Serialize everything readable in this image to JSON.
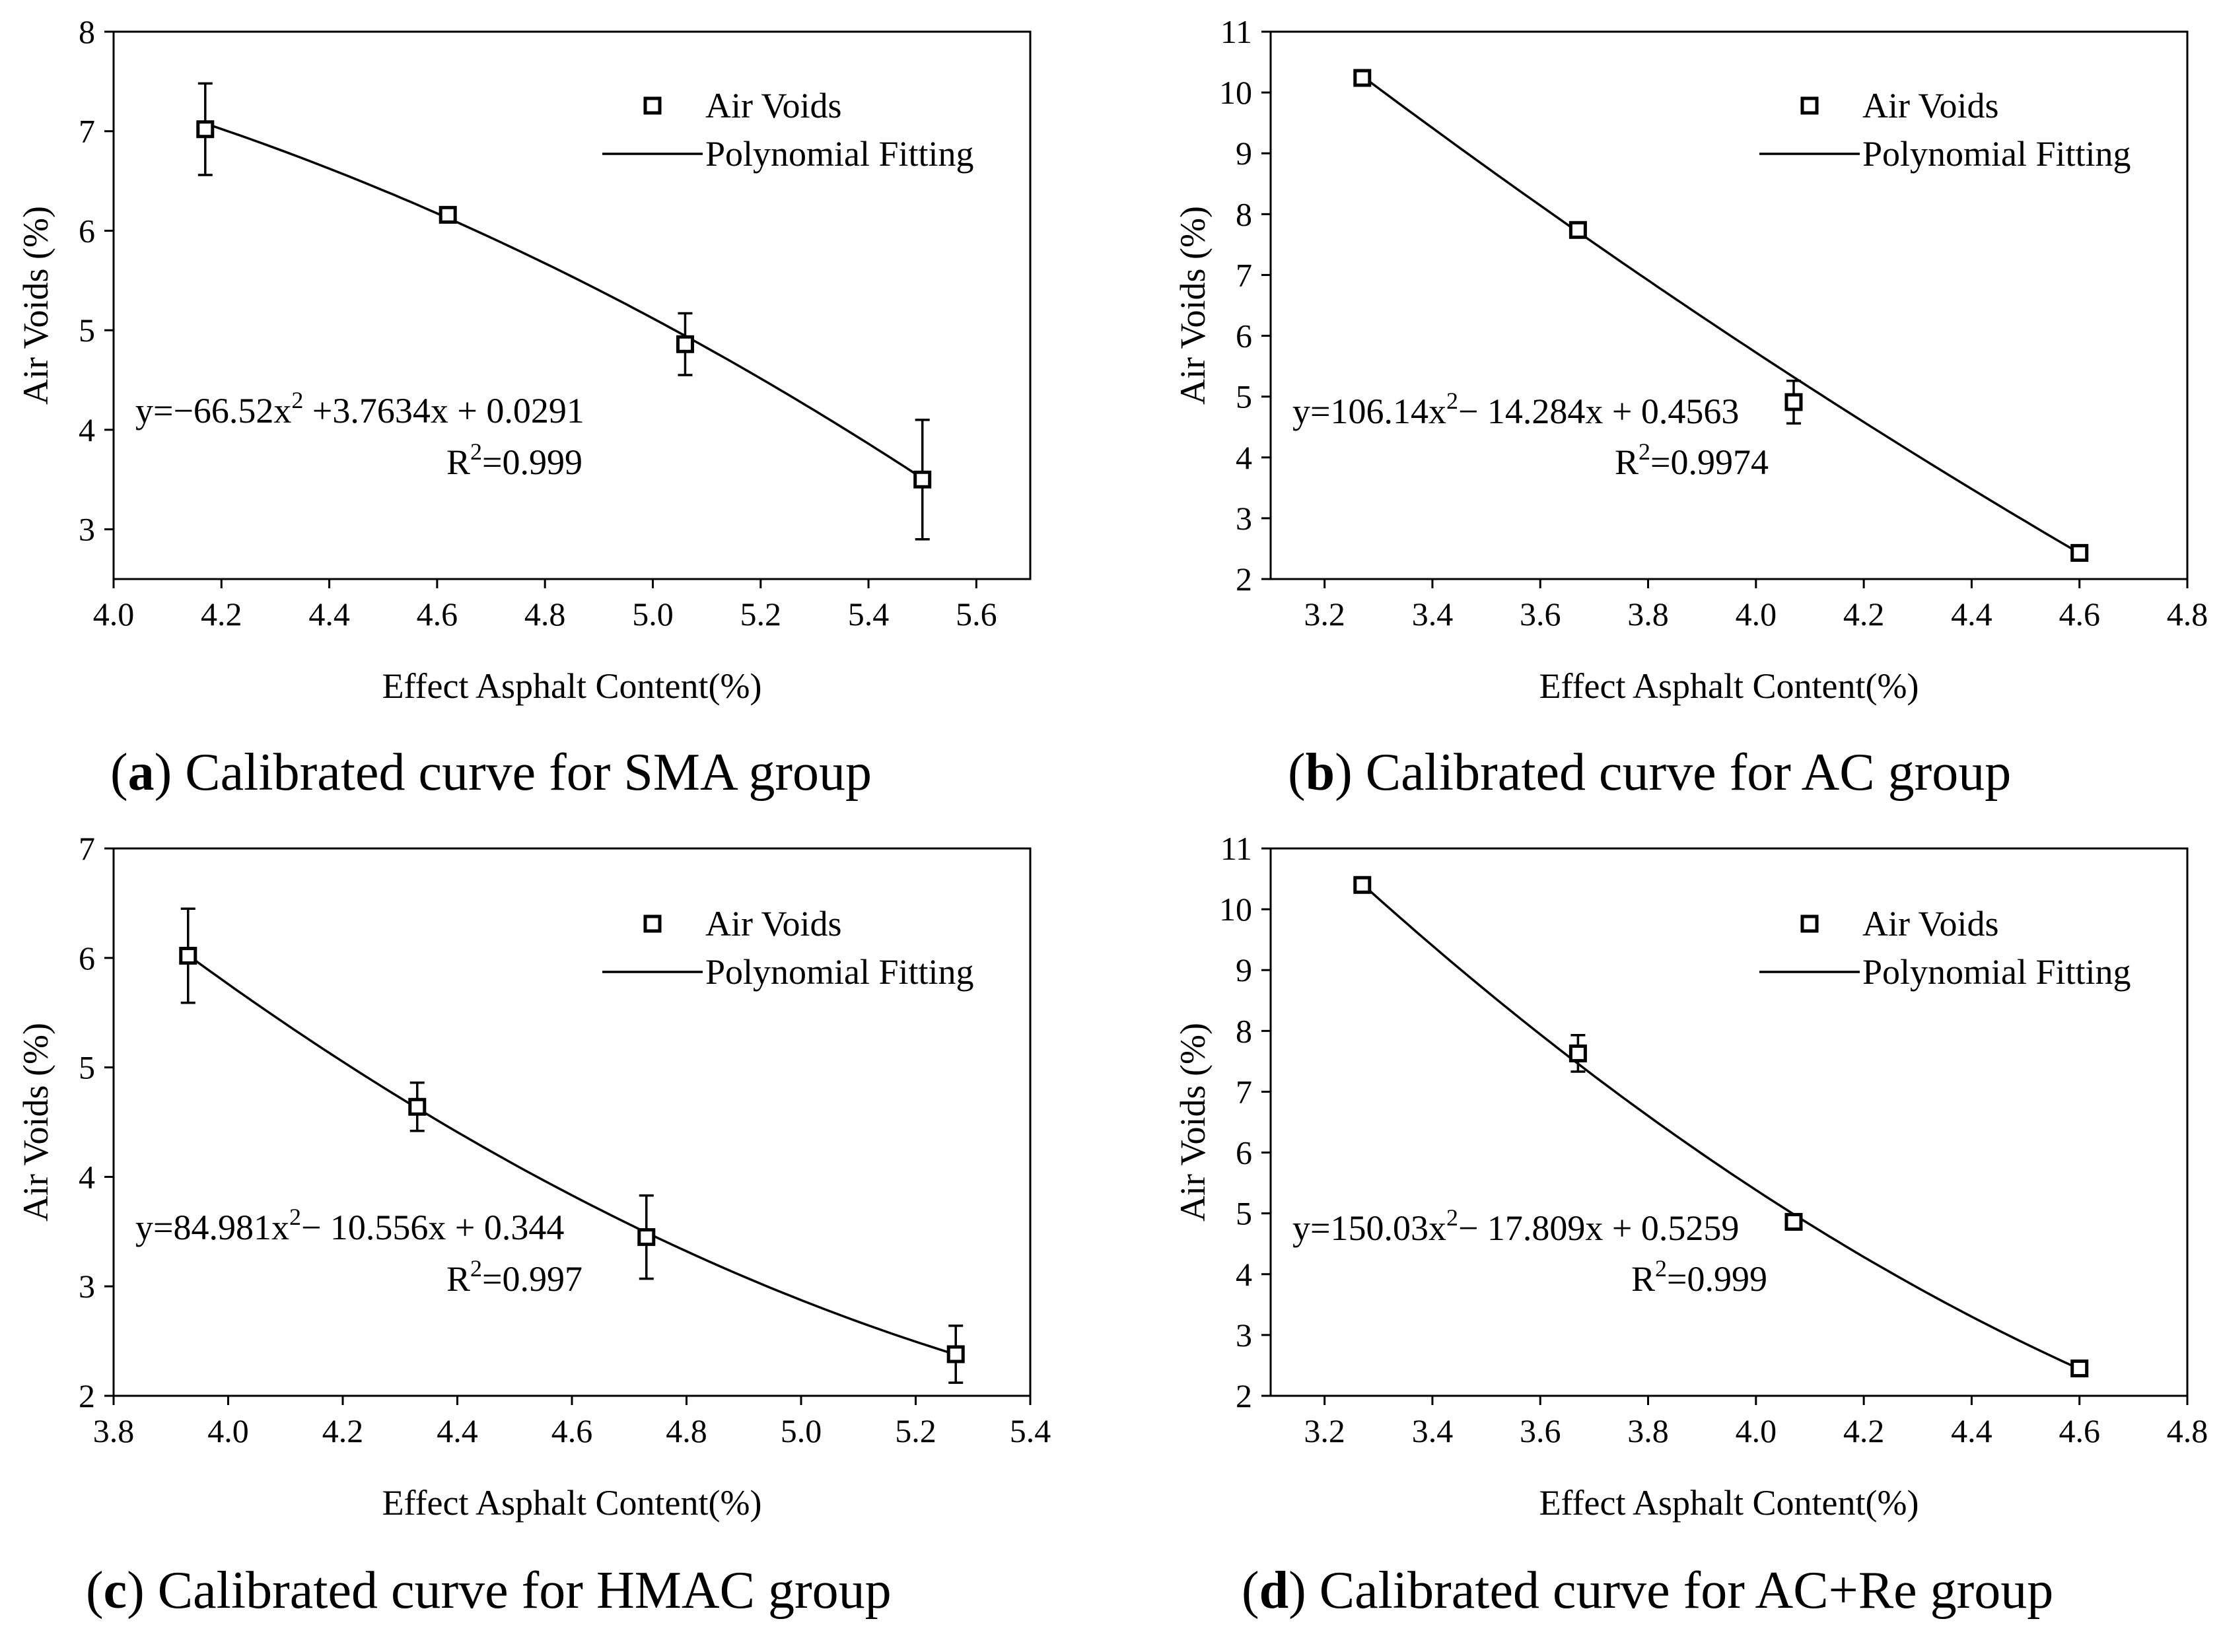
{
  "figure": {
    "charts": [
      {
        "id": "a",
        "x_values": [
          4.17,
          4.62,
          5.06,
          5.5
        ],
        "y_values": [
          7.02,
          6.16,
          4.86,
          3.5
        ],
        "y_err": [
          0.46,
          0.04,
          0.31,
          0.6
        ],
        "equation_main": "y=−66.52x",
        "equation_rest": " +3.7634x + 0.0291",
        "r2_value": "=0.999"
      }
    ]
  },
  "legend": {
    "marker_label": "Air Voids",
    "line_label": "Polynomial Fitting"
  },
  "chart_data": [
    {
      "type": "scatter",
      "panel": "a",
      "caption_letter": "a",
      "caption_text": " Calibrated curve for SMA group",
      "xlabel": "Effect Asphalt Content(%)",
      "ylabel": "Air Voids (%)",
      "xlim": [
        4.0,
        5.7
      ],
      "ylim": [
        2.5,
        8.0
      ],
      "xticks": [
        4.0,
        4.2,
        4.4,
        4.6,
        4.8,
        5.0,
        5.2,
        5.4,
        5.6
      ],
      "xtick_labels": [
        "4.0",
        "4.2",
        "4.4",
        "4.6",
        "4.8",
        "5.0",
        "5.2",
        "5.4",
        "5.6"
      ],
      "yticks": [
        3,
        4,
        5,
        6,
        7,
        8
      ],
      "ytick_labels": [
        "3",
        "4",
        "5",
        "6",
        "7",
        "8"
      ],
      "series": [
        {
          "name": "Air Voids",
          "type": "scatter",
          "x": [
            4.17,
            4.62,
            5.06,
            5.5
          ],
          "y": [
            7.02,
            6.16,
            4.86,
            3.5
          ],
          "y_err": [
            0.46,
            0.04,
            0.31,
            0.6
          ]
        },
        {
          "name": "Polynomial Fitting",
          "type": "line",
          "x": [
            4.17,
            4.62,
            5.06,
            5.5
          ],
          "y": [
            7.07,
            6.15,
            4.92,
            3.52
          ]
        }
      ],
      "equation": {
        "prefix": "y=−66.52x",
        "exp": "2",
        "suffix": " +3.7634x + 0.0291",
        "r2_label": "R",
        "r2_exp": "2",
        "r2_value": "=0.999"
      }
    },
    {
      "type": "scatter",
      "panel": "b",
      "caption_letter": "b",
      "caption_text": " Calibrated curve for AC group",
      "xlabel": "Effect Asphalt Content(%)",
      "ylabel": "Air Voids (%)",
      "xlim": [
        3.1,
        4.8
      ],
      "ylim": [
        2,
        11
      ],
      "xticks": [
        3.2,
        3.4,
        3.6,
        3.8,
        4.0,
        4.2,
        4.4,
        4.6,
        4.8
      ],
      "xtick_labels": [
        "3.2",
        "3.4",
        "3.6",
        "3.8",
        "4.0",
        "4.2",
        "4.4",
        "4.6",
        "4.8"
      ],
      "yticks": [
        2,
        3,
        4,
        5,
        6,
        7,
        8,
        9,
        10,
        11
      ],
      "ytick_labels": [
        "2",
        "3",
        "4",
        "5",
        "6",
        "7",
        "8",
        "9",
        "10",
        "11"
      ],
      "series": [
        {
          "name": "Air Voids",
          "type": "scatter",
          "x": [
            3.27,
            3.67,
            4.07,
            4.6
          ],
          "y": [
            10.24,
            7.74,
            4.91,
            2.43
          ],
          "y_err": [
            0.05,
            0.1,
            0.35,
            0.1
          ]
        },
        {
          "name": "Polynomial Fitting",
          "type": "line",
          "x": [
            3.27,
            3.67,
            4.07,
            4.6
          ],
          "y": [
            10.26,
            7.73,
            5.3,
            2.43
          ]
        }
      ],
      "equation": {
        "prefix": "y=106.14x",
        "exp": "2",
        "suffix": "− 14.284x + 0.4563",
        "r2_label": "R",
        "r2_exp": "2",
        "r2_value": "=0.9974"
      }
    },
    {
      "type": "scatter",
      "panel": "c",
      "caption_letter": "c",
      "caption_text": " Calibrated curve for HMAC group",
      "xlabel": "Effect Asphalt Content(%)",
      "ylabel": "Air Voids (%)",
      "xlim": [
        3.8,
        5.4
      ],
      "ylim": [
        2,
        7
      ],
      "xticks": [
        3.8,
        4.0,
        4.2,
        4.4,
        4.6,
        4.8,
        5.0,
        5.2,
        5.4
      ],
      "xtick_labels": [
        "3.8",
        "4.0",
        "4.2",
        "4.4",
        "4.6",
        "4.8",
        "5.0",
        "5.2",
        "5.4"
      ],
      "yticks": [
        2,
        3,
        4,
        5,
        6,
        7
      ],
      "ytick_labels": [
        "2",
        "3",
        "4",
        "5",
        "6",
        "7"
      ],
      "series": [
        {
          "name": "Air Voids",
          "type": "scatter",
          "x": [
            3.93,
            4.33,
            4.73,
            5.27
          ],
          "y": [
            6.02,
            4.64,
            3.45,
            2.38
          ],
          "y_err": [
            0.43,
            0.22,
            0.38,
            0.26
          ]
        },
        {
          "name": "Polynomial Fitting",
          "type": "line",
          "x": [
            3.93,
            4.33,
            4.73,
            5.27
          ],
          "y": [
            6.02,
            4.64,
            3.48,
            2.38
          ]
        }
      ],
      "equation": {
        "prefix": "y=84.981x",
        "exp": "2",
        "suffix": "− 10.556x + 0.344",
        "r2_label": "R",
        "r2_exp": "2",
        "r2_value": "=0.997"
      }
    },
    {
      "type": "scatter",
      "panel": "d",
      "caption_letter": "d",
      "caption_text": " Calibrated curve for AC+Re group",
      "xlabel": "Effect Asphalt Content(%)",
      "ylabel": "Air Voids (%)",
      "xlim": [
        3.1,
        4.8
      ],
      "ylim": [
        2,
        11
      ],
      "xticks": [
        3.2,
        3.4,
        3.6,
        3.8,
        4.0,
        4.2,
        4.4,
        4.6,
        4.8
      ],
      "xtick_labels": [
        "3.2",
        "3.4",
        "3.6",
        "3.8",
        "4.0",
        "4.2",
        "4.4",
        "4.6",
        "4.8"
      ],
      "yticks": [
        2,
        3,
        4,
        5,
        6,
        7,
        8,
        9,
        10,
        11
      ],
      "ytick_labels": [
        "2",
        "3",
        "4",
        "5",
        "6",
        "7",
        "8",
        "9",
        "10",
        "11"
      ],
      "series": [
        {
          "name": "Air Voids",
          "type": "scatter",
          "x": [
            3.27,
            3.67,
            4.07,
            4.6
          ],
          "y": [
            10.4,
            7.63,
            4.86,
            2.45
          ],
          "y_err": [
            0.05,
            0.3,
            0.05,
            0.05
          ]
        },
        {
          "name": "Polynomial Fitting",
          "type": "line",
          "x": [
            3.27,
            3.67,
            4.07,
            4.6
          ],
          "y": [
            10.4,
            7.5,
            4.95,
            2.45
          ]
        }
      ],
      "equation": {
        "prefix": "y=150.03x",
        "exp": "2",
        "suffix": "− 17.809x + 0.5259",
        "r2_label": "R",
        "r2_exp": "2",
        "r2_value": "=0.999"
      }
    }
  ]
}
